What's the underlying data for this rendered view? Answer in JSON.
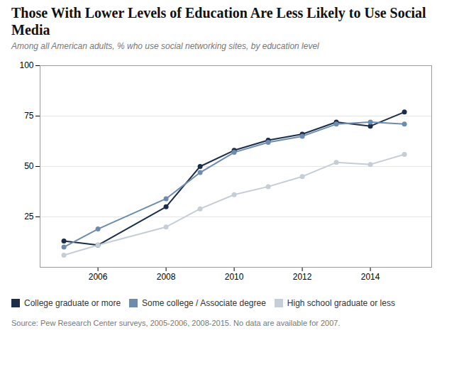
{
  "chart_data": {
    "type": "line",
    "title": "Those With Lower Levels of Education Are Less Likely to Use Social Media",
    "subtitle": "Among all American adults, % who use social networking sites, by education level",
    "source": "Source: Pew Research Center surveys, 2005-2006, 2008-2015. No data are available for 2007.",
    "x": [
      2005,
      2006,
      2008,
      2009,
      2010,
      2011,
      2012,
      2013,
      2014,
      2015
    ],
    "series": [
      {
        "name": "College graduate or more",
        "color": "#1a2e4a",
        "values": [
          13,
          11,
          30,
          50,
          58,
          63,
          66,
          72,
          70,
          77
        ]
      },
      {
        "name": "Some college / Associate degree",
        "color": "#6b8cae",
        "values": [
          10,
          19,
          34,
          47,
          57,
          62,
          65,
          71,
          72,
          71
        ]
      },
      {
        "name": "High school graduate or less",
        "color": "#c5ced6",
        "values": [
          6,
          11,
          20,
          29,
          36,
          40,
          45,
          52,
          51,
          56
        ]
      }
    ],
    "xlim": [
      2004.3,
      2015.8
    ],
    "xticks": [
      2006,
      2008,
      2010,
      2012,
      2014
    ],
    "ylim": [
      0,
      100
    ],
    "yticks": [
      25,
      50,
      75,
      100
    ],
    "grid": true,
    "marker": "circle",
    "legend": "bottom"
  }
}
